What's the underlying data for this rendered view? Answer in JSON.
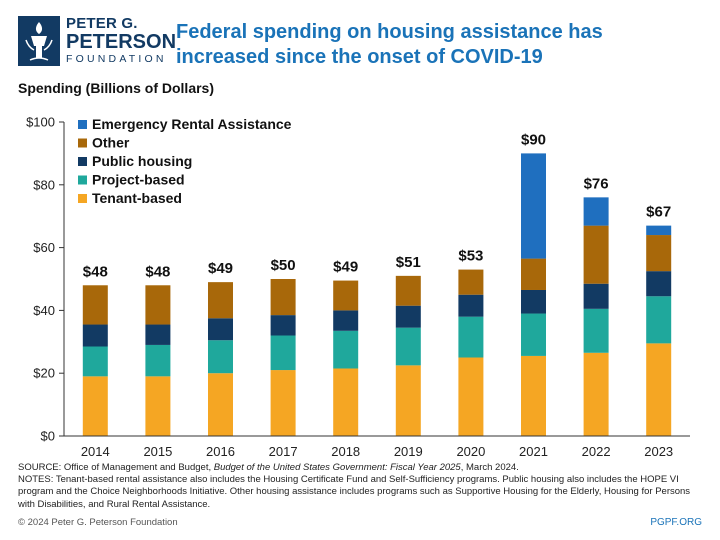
{
  "brand": {
    "line1": "PETER G.",
    "line2": "PETERSON",
    "line3": "FOUNDATION",
    "navy": "#123a63",
    "blue": "#1a73b8"
  },
  "header": {
    "title": "Federal spending on housing assistance has increased since the onset of COVID-19",
    "subhead": "Spending (Billions of Dollars)"
  },
  "chart_data": {
    "type": "bar",
    "stacked": true,
    "categories": [
      "2014",
      "2015",
      "2016",
      "2017",
      "2018",
      "2019",
      "2020",
      "2021",
      "2022",
      "2023"
    ],
    "series": [
      {
        "name": "Tenant-based",
        "color": "#f5a623",
        "values": [
          19,
          19,
          20,
          21,
          21.5,
          22.5,
          25,
          25.5,
          26.5,
          29.5
        ]
      },
      {
        "name": "Project-based",
        "color": "#1fa89c",
        "values": [
          9.5,
          10,
          10.5,
          11,
          12,
          12,
          13,
          13.5,
          14,
          15
        ]
      },
      {
        "name": "Public housing",
        "color": "#123a63",
        "values": [
          7,
          6.5,
          7,
          6.5,
          6.5,
          7,
          7,
          7.5,
          8,
          8
        ]
      },
      {
        "name": "Other",
        "color": "#a8680a",
        "values": [
          12.5,
          12.5,
          11.5,
          11.5,
          9.5,
          9.5,
          8,
          10,
          18.5,
          11.5
        ]
      },
      {
        "name": "Emergency Rental Assistance",
        "color": "#1f6fbf",
        "values": [
          0,
          0,
          0,
          0,
          0,
          0,
          0,
          33.5,
          9,
          3
        ]
      }
    ],
    "totals": [
      "$48",
      "$48",
      "$49",
      "$50",
      "$49",
      "$51",
      "$53",
      "$90",
      "$76",
      "$67"
    ],
    "yticks": [
      "$0",
      "$20",
      "$40",
      "$60",
      "$80",
      "$100"
    ],
    "ylim": [
      0,
      100
    ],
    "grid": false,
    "legend": "top-left"
  },
  "notes": {
    "source_prefix": "SOURCE: Office of Management and Budget, ",
    "source_italic": "Budget of the United States Government: Fiscal Year 2025",
    "source_suffix": ", March 2024.",
    "notes_text": "NOTES: Tenant-based rental assistance also includes the Housing Certificate Fund and Self-Sufficiency programs. Public housing also includes the HOPE VI program and the Choice Neighborhoods Initiative. Other housing assistance includes programs such as Supportive Housing for the Elderly, Housing for Persons with Disabilities, and Rural Rental Assistance."
  },
  "footer": {
    "copyright": "© 2024 Peter G. Peterson Foundation",
    "site": "PGPF.ORG"
  }
}
